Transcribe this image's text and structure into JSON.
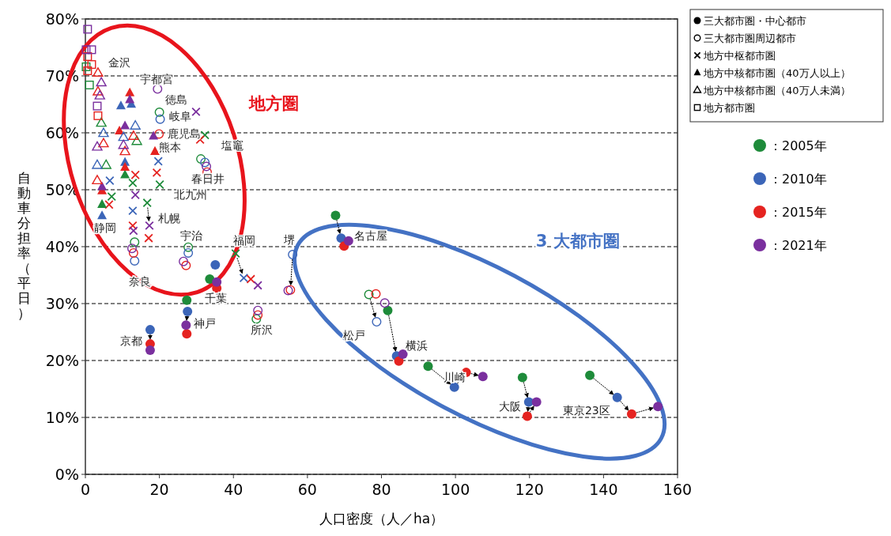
{
  "chart_data": {
    "type": "scatter",
    "xlabel": "人口密度（人／ha）",
    "ylabel": "自動車分担率（平日）",
    "xlim": [
      0,
      160
    ],
    "xticks": [
      0,
      20,
      40,
      60,
      80,
      100,
      120,
      140,
      160
    ],
    "ylim": [
      0,
      80
    ],
    "yticks": [
      {
        "value": 0,
        "label": "0%"
      },
      {
        "value": 10,
        "label": "10%"
      },
      {
        "value": 20,
        "label": "20%"
      },
      {
        "value": 30,
        "label": "30%"
      },
      {
        "value": 40,
        "label": "40%"
      },
      {
        "value": 50,
        "label": "50%"
      },
      {
        "value": 60,
        "label": "60%"
      },
      {
        "value": 70,
        "label": "70%"
      },
      {
        "value": 80,
        "label": "80%"
      }
    ],
    "grid": "y",
    "legend": "right",
    "series": [
      {
        "name": "：2005年",
        "color": "#1e8b3a",
        "marker": "circle",
        "x": [
          67.6,
          81.7,
          92.6,
          118.1,
          136.3,
          33.6,
          27.4
        ],
        "values": [
          45.5,
          28.8,
          19.0,
          17.0,
          17.4,
          34.3,
          30.6
        ]
      },
      {
        "name": "：2010年",
        "color": "#3b65b8",
        "marker": "circle",
        "x": [
          69.1,
          84.1,
          99.7,
          119.8,
          143.7,
          35.1,
          27.6,
          17.5
        ],
        "values": [
          41.5,
          20.8,
          15.3,
          12.7,
          13.5,
          36.8,
          28.6,
          25.4
        ]
      },
      {
        "name": "：2015年",
        "color": "#e52320",
        "marker": "circle",
        "x": [
          69.9,
          84.7,
          102.9,
          119.4,
          147.6,
          35.5,
          27.4,
          17.5
        ],
        "values": [
          40.1,
          19.9,
          17.9,
          10.2,
          10.6,
          32.7,
          24.7,
          22.9
        ]
      },
      {
        "name": "：2021年",
        "color": "#7a2f9e",
        "marker": "circle",
        "x": [
          71.1,
          85.8,
          107.4,
          121.9,
          154.7,
          35.5,
          27.2,
          17.5
        ],
        "values": [
          41.0,
          21.1,
          17.2,
          12.7,
          11.9,
          33.8,
          26.2,
          21.8
        ]
      },
      {
        "color": "#1e8b3a",
        "marker": "circle-open",
        "x": [
          46.2,
          27.8,
          13.3,
          76.6,
          20.0,
          31.2
        ],
        "values": [
          27.3,
          39.9,
          40.8,
          31.6,
          63.6,
          55.4
        ]
      },
      {
        "color": "#3b65b8",
        "marker": "circle-open",
        "x": [
          56.0,
          27.8,
          13.3,
          78.7,
          20.2,
          32.3
        ],
        "values": [
          38.6,
          38.9,
          37.5,
          26.8,
          62.4,
          54.8
        ]
      },
      {
        "color": "#e52320",
        "marker": "circle-open",
        "x": [
          55.4,
          46.6,
          27.2,
          13.0,
          78.5,
          19.9,
          32.9
        ],
        "values": [
          32.4,
          28.0,
          36.7,
          38.9,
          31.7,
          59.8,
          53.1
        ]
      },
      {
        "color": "#7a2f9e",
        "marker": "circle-open",
        "x": [
          54.8,
          46.6,
          26.5,
          12.6,
          80.9,
          19.5,
          32.7
        ],
        "values": [
          32.3,
          28.8,
          37.4,
          39.7,
          30.1,
          67.7,
          54.1
        ]
      },
      {
        "color": "#1e8b3a",
        "marker": "cross",
        "x": [
          40.6,
          12.8,
          16.7,
          32.3,
          20.1,
          7.1
        ],
        "values": [
          38.8,
          51.2,
          47.7,
          59.6,
          50.9,
          48.8
        ]
      },
      {
        "color": "#3b65b8",
        "marker": "cross",
        "x": [
          42.8,
          12.8,
          19.7,
          6.6
        ],
        "values": [
          34.5,
          46.3,
          55.0,
          51.6
        ]
      },
      {
        "color": "#e52320",
        "marker": "cross",
        "x": [
          44.7,
          13.5,
          12.8,
          17.1,
          31.0,
          19.3,
          6.4
        ],
        "values": [
          34.3,
          52.6,
          43.7,
          41.5,
          58.8,
          53.0,
          47.4
        ]
      },
      {
        "color": "#7a2f9e",
        "marker": "cross",
        "x": [
          46.6,
          13.5,
          13.0,
          17.3,
          29.9
        ],
        "values": [
          33.2,
          49.1,
          42.8,
          43.7,
          63.7
        ]
      },
      {
        "color": "#1e8b3a",
        "marker": "triangle",
        "x": [
          10.7,
          4.5
        ],
        "values": [
          52.6,
          47.4
        ]
      },
      {
        "color": "#3b65b8",
        "marker": "triangle",
        "x": [
          12.4,
          9.6,
          10.7,
          4.5
        ],
        "values": [
          65.0,
          64.7,
          54.8,
          45.4
        ]
      },
      {
        "color": "#e52320",
        "marker": "triangle",
        "x": [
          12.0,
          9.2,
          18.8,
          10.7,
          4.5
        ],
        "values": [
          67.0,
          60.3,
          56.7,
          53.9,
          49.8
        ]
      },
      {
        "color": "#7a2f9e",
        "marker": "triangle",
        "x": [
          12.0,
          10.7,
          18.4,
          4.5
        ],
        "values": [
          65.8,
          61.2,
          59.4,
          50.5
        ]
      },
      {
        "color": "#1e8b3a",
        "marker": "triangle-open",
        "x": [
          4.3,
          5.6,
          13.9
        ],
        "values": [
          61.7,
          54.3,
          58.5
        ]
      },
      {
        "color": "#3b65b8",
        "marker": "triangle-open",
        "x": [
          4.9,
          3.2,
          10.3,
          13.5
        ],
        "values": [
          59.9,
          54.3,
          59.2,
          61.2
        ]
      },
      {
        "color": "#e52320",
        "marker": "triangle-open",
        "x": [
          3.4,
          3.4,
          4.9,
          3.2,
          10.7,
          13.0
        ],
        "values": [
          70.5,
          67.2,
          58.1,
          51.6,
          56.7,
          59.4
        ]
      },
      {
        "color": "#7a2f9e",
        "marker": "triangle-open",
        "x": [
          4.3,
          3.9,
          3.2,
          10.3
        ],
        "values": [
          68.8,
          66.5,
          57.5,
          57.8
        ]
      },
      {
        "color": "#1e8b3a",
        "marker": "square-open",
        "x": [
          0.2,
          1.1
        ],
        "values": [
          71.6,
          68.4
        ]
      },
      {
        "color": "#e52320",
        "marker": "square-open",
        "x": [
          0.6,
          1.7,
          0.6,
          3.4
        ],
        "values": [
          73.4,
          72.0,
          70.9,
          63.0
        ]
      },
      {
        "color": "#7a2f9e",
        "marker": "square-open",
        "x": [
          0.6,
          0.2,
          1.7,
          3.2
        ],
        "values": [
          78.2,
          74.6,
          74.6,
          64.7
        ]
      }
    ],
    "annotations": [
      "三大都市圏・中心都市",
      "三大都市圏周辺都市",
      "地方中枢都市圏",
      "地方中核都市圏（40万人以上）",
      "地方中核都市圏（40万人未満）",
      "地方都市圏",
      "金沢",
      "宇都宮",
      "徳島",
      "岐阜",
      "鹿児島",
      "塩竈",
      "熊本",
      "春日井",
      "北九州",
      "札幌",
      "静岡",
      "宇治",
      "福岡",
      "堺",
      "名古屋",
      "奈良",
      "千葉",
      "神戸",
      "所沢",
      "京都",
      "松戸",
      "横浜",
      "川崎",
      "大阪",
      "東京23区",
      "地方圏",
      "3 大都市圏"
    ]
  }
}
